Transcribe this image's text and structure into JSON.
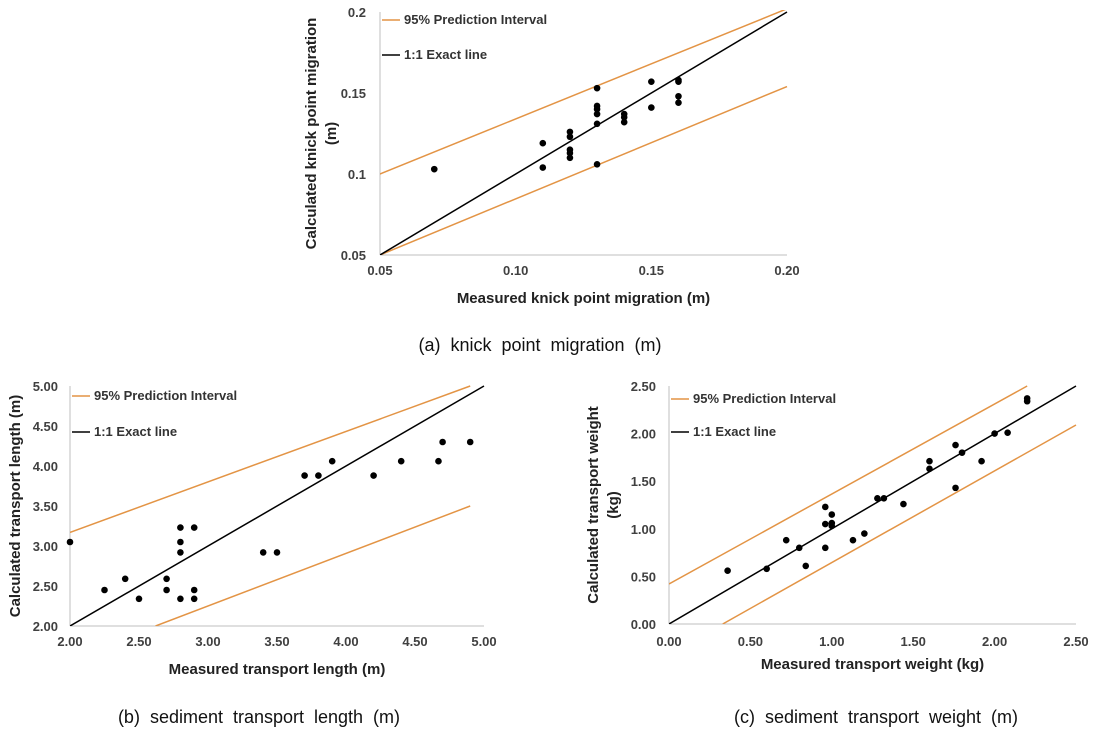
{
  "chart_data": [
    {
      "type": "scatter",
      "caption": "(a)  knick  point  migration  (m)",
      "xlabel": "Measured knick point migration (m)",
      "ylabel_lines": [
        "Calculated knick point migration",
        "(m)"
      ],
      "xlim": [
        0.05,
        0.2
      ],
      "ylim": [
        0.05,
        0.2
      ],
      "xticks": [
        "0.05",
        "0.10",
        "0.15",
        "0.20"
      ],
      "yticks": [
        "0.05",
        "0.1",
        "0.15",
        "0.2"
      ],
      "legend": [
        "95% Prediction Interval",
        "1:1 Exact line"
      ],
      "colors": {
        "interval": "#E39445",
        "exact": "#000000",
        "points": "#000000"
      },
      "exact_line": [
        [
          0.05,
          0.05
        ],
        [
          0.2,
          0.2
        ]
      ],
      "upper_line": [
        [
          0.05,
          0.1
        ],
        [
          0.2,
          0.202
        ]
      ],
      "lower_line": [
        [
          0.05,
          0.05
        ],
        [
          0.2,
          0.154
        ]
      ],
      "points": [
        [
          0.07,
          0.103
        ],
        [
          0.11,
          0.104
        ],
        [
          0.11,
          0.119
        ],
        [
          0.12,
          0.11
        ],
        [
          0.12,
          0.113
        ],
        [
          0.12,
          0.115
        ],
        [
          0.12,
          0.123
        ],
        [
          0.12,
          0.126
        ],
        [
          0.13,
          0.106
        ],
        [
          0.13,
          0.131
        ],
        [
          0.13,
          0.137
        ],
        [
          0.13,
          0.14
        ],
        [
          0.13,
          0.142
        ],
        [
          0.13,
          0.153
        ],
        [
          0.14,
          0.132
        ],
        [
          0.14,
          0.135
        ],
        [
          0.14,
          0.137
        ],
        [
          0.15,
          0.141
        ],
        [
          0.15,
          0.157
        ],
        [
          0.16,
          0.144
        ],
        [
          0.16,
          0.148
        ],
        [
          0.16,
          0.157
        ],
        [
          0.16,
          0.158
        ]
      ]
    },
    {
      "type": "scatter",
      "caption": "(b)  sediment  transport  length  (m)",
      "xlabel": "Measured transport length (m)",
      "ylabel_lines": [
        "Calculated transport length (m)"
      ],
      "xlim": [
        2.0,
        5.0
      ],
      "ylim": [
        2.0,
        5.0
      ],
      "xticks": [
        "2.00",
        "2.50",
        "3.00",
        "3.50",
        "4.00",
        "4.50",
        "5.00"
      ],
      "yticks": [
        "2.00",
        "2.50",
        "3.00",
        "3.50",
        "4.00",
        "4.50",
        "5.00"
      ],
      "legend": [
        "95% Prediction Interval",
        "1:1 Exact line"
      ],
      "colors": {
        "interval": "#E39445",
        "exact": "#000000",
        "points": "#000000"
      },
      "exact_line": [
        [
          2.0,
          2.0
        ],
        [
          5.0,
          5.0
        ]
      ],
      "upper_line": [
        [
          2.0,
          3.17
        ],
        [
          4.9,
          5.0
        ]
      ],
      "lower_line": [
        [
          2.62,
          2.0
        ],
        [
          4.9,
          3.5
        ]
      ],
      "points": [
        [
          2.0,
          3.05
        ],
        [
          2.25,
          2.45
        ],
        [
          2.4,
          2.59
        ],
        [
          2.5,
          2.34
        ],
        [
          2.7,
          2.59
        ],
        [
          2.7,
          2.45
        ],
        [
          2.8,
          3.23
        ],
        [
          2.8,
          3.05
        ],
        [
          2.8,
          2.92
        ],
        [
          2.8,
          2.34
        ],
        [
          2.9,
          3.23
        ],
        [
          2.9,
          2.45
        ],
        [
          2.9,
          2.34
        ],
        [
          3.4,
          2.92
        ],
        [
          3.5,
          2.92
        ],
        [
          3.7,
          3.88
        ],
        [
          3.8,
          3.88
        ],
        [
          3.9,
          4.06
        ],
        [
          4.2,
          3.88
        ],
        [
          4.4,
          4.06
        ],
        [
          4.67,
          4.06
        ],
        [
          4.7,
          4.3
        ],
        [
          4.9,
          4.3
        ]
      ]
    },
    {
      "type": "scatter",
      "caption": "(c)  sediment  transport  weight  (m)",
      "xlabel": "Measured transport weight (kg)",
      "ylabel_lines": [
        "Calculated transport weight",
        "(kg)"
      ],
      "xlim": [
        0.0,
        2.5
      ],
      "ylim": [
        0.0,
        2.5
      ],
      "xticks": [
        "0.00",
        "0.50",
        "1.00",
        "1.50",
        "2.00",
        "2.50"
      ],
      "yticks": [
        "0.00",
        "0.50",
        "1.00",
        "1.50",
        "2.00",
        "2.50"
      ],
      "legend": [
        "95% Prediction Interval",
        "1:1 Exact line"
      ],
      "colors": {
        "interval": "#E39445",
        "exact": "#000000",
        "points": "#000000"
      },
      "exact_line": [
        [
          0.0,
          0.0
        ],
        [
          2.5,
          2.5
        ]
      ],
      "upper_line": [
        [
          0.0,
          0.42
        ],
        [
          2.2,
          2.5
        ]
      ],
      "lower_line": [
        [
          0.33,
          0.0
        ],
        [
          2.5,
          2.09
        ]
      ],
      "points": [
        [
          0.36,
          0.56
        ],
        [
          0.6,
          0.58
        ],
        [
          0.72,
          0.88
        ],
        [
          0.8,
          0.8
        ],
        [
          0.84,
          0.61
        ],
        [
          0.96,
          1.23
        ],
        [
          0.96,
          1.05
        ],
        [
          0.96,
          0.8
        ],
        [
          1.0,
          1.15
        ],
        [
          1.0,
          1.06
        ],
        [
          1.0,
          1.03
        ],
        [
          1.13,
          0.88
        ],
        [
          1.2,
          0.95
        ],
        [
          1.28,
          1.32
        ],
        [
          1.32,
          1.32
        ],
        [
          1.44,
          1.26
        ],
        [
          1.6,
          1.71
        ],
        [
          1.6,
          1.63
        ],
        [
          1.76,
          1.88
        ],
        [
          1.76,
          1.43
        ],
        [
          1.8,
          1.8
        ],
        [
          1.92,
          1.71
        ],
        [
          2.0,
          2.0
        ],
        [
          2.08,
          2.01
        ],
        [
          2.2,
          2.37
        ],
        [
          2.2,
          2.34
        ]
      ]
    }
  ]
}
